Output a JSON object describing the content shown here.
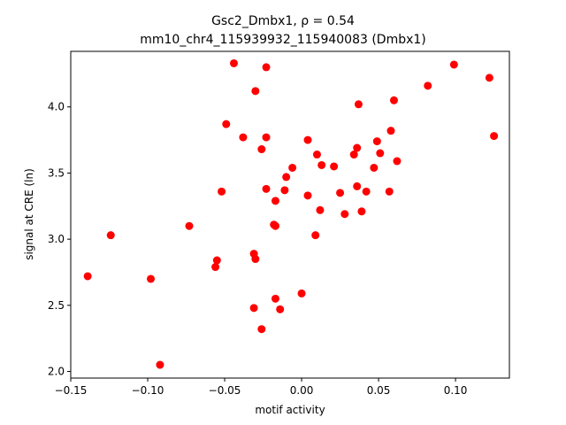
{
  "chart_data": {
    "type": "scatter",
    "title_line1": "Gsc2_Dmbx1, ρ = 0.54",
    "title_line2": "mm10_chr4_115939932_115940083 (Dmbx1)",
    "xlabel": "motif activity",
    "ylabel": "signal at CRE (ln)",
    "xlim": [
      -0.15,
      0.135
    ],
    "ylim": [
      1.95,
      4.42
    ],
    "xticks": [
      -0.15,
      -0.1,
      -0.05,
      0.0,
      0.05,
      0.1
    ],
    "xtick_labels": [
      "−0.15",
      "−0.10",
      "−0.05",
      "0.00",
      "0.05",
      "0.10"
    ],
    "yticks": [
      2.0,
      2.5,
      3.0,
      3.5,
      4.0
    ],
    "ytick_labels": [
      "2.0",
      "2.5",
      "3.0",
      "3.5",
      "4.0"
    ],
    "marker_color": "#ff0000",
    "grid": false,
    "points": [
      {
        "x": -0.139,
        "y": 2.72
      },
      {
        "x": -0.124,
        "y": 3.03
      },
      {
        "x": -0.098,
        "y": 2.7
      },
      {
        "x": -0.092,
        "y": 2.05
      },
      {
        "x": -0.073,
        "y": 3.1
      },
      {
        "x": -0.056,
        "y": 2.79
      },
      {
        "x": -0.055,
        "y": 2.84
      },
      {
        "x": -0.052,
        "y": 3.36
      },
      {
        "x": -0.049,
        "y": 3.87
      },
      {
        "x": -0.044,
        "y": 4.33
      },
      {
        "x": -0.038,
        "y": 3.77
      },
      {
        "x": -0.031,
        "y": 2.89
      },
      {
        "x": -0.031,
        "y": 2.48
      },
      {
        "x": -0.03,
        "y": 2.85
      },
      {
        "x": -0.03,
        "y": 4.12
      },
      {
        "x": -0.026,
        "y": 3.68
      },
      {
        "x": -0.026,
        "y": 2.32
      },
      {
        "x": -0.023,
        "y": 4.3
      },
      {
        "x": -0.023,
        "y": 3.77
      },
      {
        "x": -0.023,
        "y": 3.38
      },
      {
        "x": -0.018,
        "y": 3.11
      },
      {
        "x": -0.017,
        "y": 3.1
      },
      {
        "x": -0.017,
        "y": 2.55
      },
      {
        "x": -0.017,
        "y": 3.29
      },
      {
        "x": -0.014,
        "y": 2.47
      },
      {
        "x": -0.011,
        "y": 3.37
      },
      {
        "x": -0.01,
        "y": 3.47
      },
      {
        "x": -0.006,
        "y": 3.54
      },
      {
        "x": 0.0,
        "y": 2.59
      },
      {
        "x": 0.004,
        "y": 3.75
      },
      {
        "x": 0.004,
        "y": 3.33
      },
      {
        "x": 0.009,
        "y": 3.03
      },
      {
        "x": 0.01,
        "y": 3.64
      },
      {
        "x": 0.012,
        "y": 3.22
      },
      {
        "x": 0.013,
        "y": 3.56
      },
      {
        "x": 0.021,
        "y": 3.55
      },
      {
        "x": 0.025,
        "y": 3.35
      },
      {
        "x": 0.028,
        "y": 3.19
      },
      {
        "x": 0.034,
        "y": 3.64
      },
      {
        "x": 0.036,
        "y": 3.69
      },
      {
        "x": 0.036,
        "y": 3.4
      },
      {
        "x": 0.037,
        "y": 4.02
      },
      {
        "x": 0.039,
        "y": 3.21
      },
      {
        "x": 0.042,
        "y": 3.36
      },
      {
        "x": 0.047,
        "y": 3.54
      },
      {
        "x": 0.049,
        "y": 3.74
      },
      {
        "x": 0.051,
        "y": 3.65
      },
      {
        "x": 0.057,
        "y": 3.36
      },
      {
        "x": 0.058,
        "y": 3.82
      },
      {
        "x": 0.06,
        "y": 4.05
      },
      {
        "x": 0.062,
        "y": 3.59
      },
      {
        "x": 0.082,
        "y": 4.16
      },
      {
        "x": 0.099,
        "y": 4.32
      },
      {
        "x": 0.122,
        "y": 4.22
      },
      {
        "x": 0.125,
        "y": 3.78
      }
    ]
  }
}
